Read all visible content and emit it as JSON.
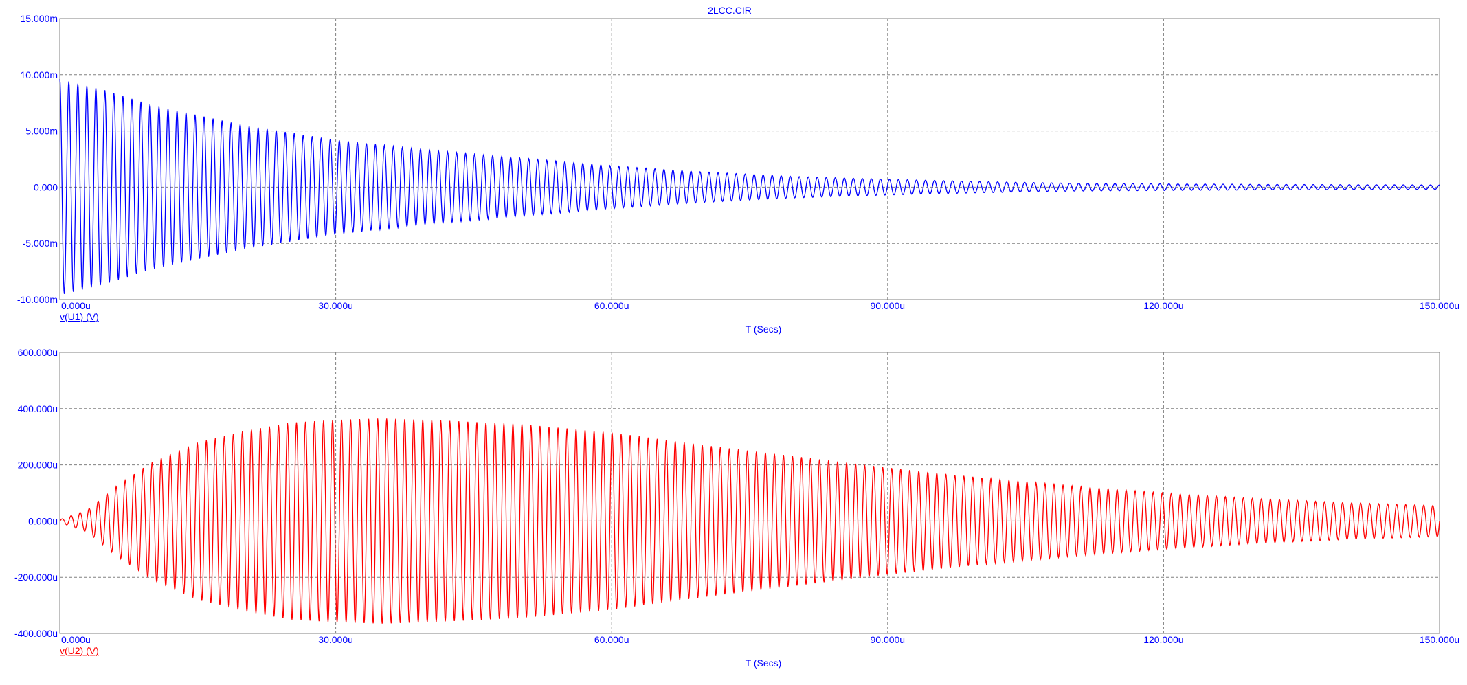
{
  "window_title": "2LCC.CIR",
  "colors": {
    "series1": "#0000ff",
    "series2": "#ff0000",
    "text": "#0000ff",
    "grid": "#808080",
    "frame": "#808080"
  },
  "chart_data": [
    {
      "type": "line",
      "title": "2LCC.CIR",
      "xlabel": "T (Secs)",
      "ylabel": "",
      "xlim": [
        0,
        150
      ],
      "xunit": "u",
      "ylim": [
        -10,
        15
      ],
      "yunit": "m",
      "xticks": [
        "0.000u",
        "30.000u",
        "60.000u",
        "90.000u",
        "120.000u",
        "150.000u"
      ],
      "yticks": [
        "15.000m",
        "10.000m",
        "5.000m",
        "0.000",
        "-5.000m",
        "-10.000m"
      ],
      "grid": true,
      "series": [
        {
          "name": "v(U1) (V)",
          "color": "#0000ff",
          "frequency_MHz": 1.02,
          "envelope_t": [
            0,
            5,
            10,
            20,
            30,
            40,
            50,
            60,
            70,
            80,
            90,
            100,
            110,
            120,
            130,
            140,
            150
          ],
          "envelope_amp": [
            9.6,
            8.6,
            7.3,
            5.5,
            4.2,
            3.3,
            2.6,
            1.9,
            1.35,
            0.95,
            0.7,
            0.5,
            0.35,
            0.3,
            0.25,
            0.22,
            0.2
          ]
        }
      ]
    },
    {
      "type": "line",
      "title": "",
      "xlabel": "T (Secs)",
      "ylabel": "",
      "xlim": [
        0,
        150
      ],
      "xunit": "u",
      "ylim": [
        -400,
        600
      ],
      "yunit": "u",
      "xticks": [
        "0.000u",
        "30.000u",
        "60.000u",
        "90.000u",
        "120.000u",
        "150.000u"
      ],
      "yticks": [
        "600.000u",
        "400.000u",
        "200.000u",
        "0.000u",
        "-200.000u",
        "-400.000u"
      ],
      "grid": true,
      "series": [
        {
          "name": "v(U2) (V)",
          "color": "#ff0000",
          "frequency_MHz": 1.02,
          "envelope_t": [
            0,
            3,
            6,
            10,
            15,
            20,
            25,
            30,
            35,
            40,
            50,
            60,
            70,
            80,
            90,
            100,
            110,
            120,
            130,
            140,
            150
          ],
          "envelope_amp": [
            5,
            40,
            120,
            210,
            280,
            320,
            350,
            360,
            365,
            360,
            345,
            315,
            270,
            230,
            190,
            155,
            125,
            100,
            80,
            65,
            55
          ]
        }
      ]
    }
  ]
}
